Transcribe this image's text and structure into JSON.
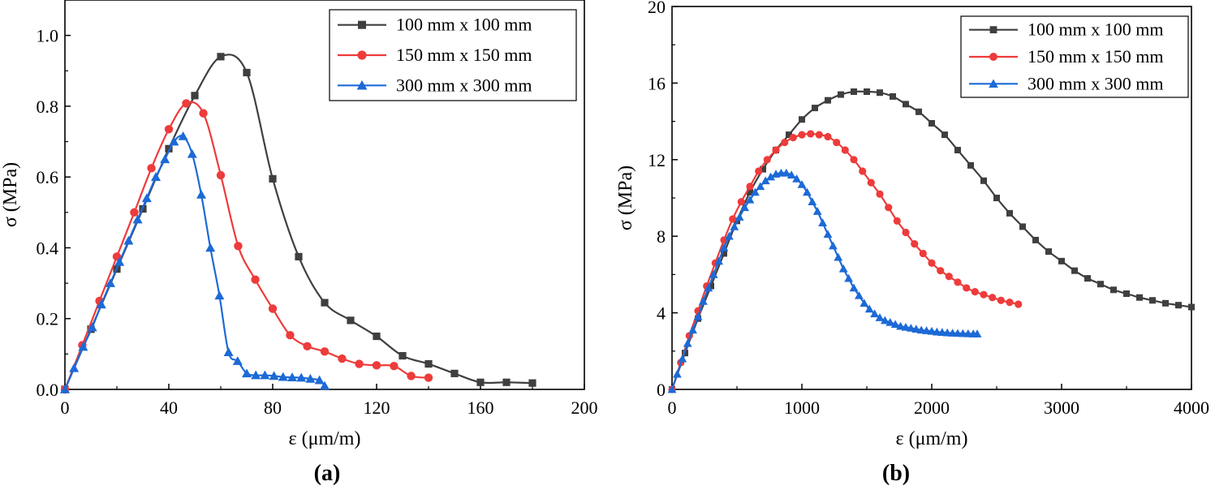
{
  "chart_data": [
    {
      "panel_label": "(a)",
      "type": "line",
      "xlabel": "ε (μm/m)",
      "ylabel": "σ (MPa)",
      "xlim": [
        0,
        200
      ],
      "ylim": [
        0,
        1.1
      ],
      "xticks": [
        0,
        40,
        80,
        120,
        160,
        200
      ],
      "xtick_labels": [
        "0",
        "40",
        "80",
        "120",
        "160",
        "200"
      ],
      "yticks": [
        0,
        0.2,
        0.4,
        0.6,
        0.8,
        1.0
      ],
      "ytick_labels": [
        "0.0",
        "0.2",
        "0.4",
        "0.6",
        "0.8",
        "1.0"
      ],
      "legend_position": "top-right",
      "series": [
        {
          "name": "100 mm x 100 mm",
          "color": "#3f3f3f",
          "marker": "square",
          "x": [
            0,
            10,
            20,
            30,
            40,
            50,
            60,
            70,
            80,
            90,
            100,
            110,
            120,
            130,
            140,
            150,
            160,
            170,
            180
          ],
          "y": [
            0.0,
            0.17,
            0.34,
            0.51,
            0.68,
            0.83,
            0.94,
            0.895,
            0.595,
            0.375,
            0.245,
            0.195,
            0.15,
            0.095,
            0.072,
            0.045,
            0.02,
            0.02,
            0.018
          ]
        },
        {
          "name": "150 mm x 150 mm",
          "color": "#ee3b3b",
          "marker": "circle",
          "x": [
            0,
            6.7,
            13.3,
            20,
            26.7,
            33.3,
            40,
            46.7,
            53.3,
            60,
            66.7,
            73.3,
            80,
            86.7,
            93.3,
            100,
            106.7,
            113.3,
            120,
            126.7,
            133.3,
            140
          ],
          "y": [
            0.0,
            0.125,
            0.25,
            0.375,
            0.5,
            0.625,
            0.735,
            0.808,
            0.78,
            0.605,
            0.405,
            0.31,
            0.228,
            0.153,
            0.122,
            0.107,
            0.087,
            0.072,
            0.068,
            0.066,
            0.038,
            0.033
          ]
        },
        {
          "name": "300 mm x 300 mm",
          "color": "#1c6ad6",
          "marker": "triangle",
          "x": [
            0,
            3.5,
            7,
            10.5,
            14,
            17.5,
            21,
            24.5,
            28,
            31.5,
            35,
            38.5,
            42,
            45.5,
            49,
            52.5,
            56,
            59.5,
            63,
            66.5,
            70,
            73.5,
            77,
            80.5,
            84,
            87.5,
            91,
            94.5,
            98,
            100
          ],
          "y": [
            0.0,
            0.06,
            0.12,
            0.175,
            0.24,
            0.3,
            0.36,
            0.42,
            0.48,
            0.54,
            0.6,
            0.65,
            0.7,
            0.715,
            0.665,
            0.55,
            0.4,
            0.265,
            0.105,
            0.08,
            0.045,
            0.04,
            0.04,
            0.038,
            0.035,
            0.034,
            0.033,
            0.03,
            0.026,
            0.01
          ]
        }
      ]
    },
    {
      "panel_label": "(b)",
      "type": "line",
      "xlabel": "ε (μm/m)",
      "ylabel": "σ (MPa)",
      "xlim": [
        0,
        4000
      ],
      "ylim": [
        0,
        20
      ],
      "xticks": [
        0,
        1000,
        2000,
        3000,
        4000
      ],
      "xtick_labels": [
        "0",
        "1000",
        "2000",
        "3000",
        "4000"
      ],
      "yticks": [
        0,
        4,
        8,
        12,
        16,
        20
      ],
      "ytick_labels": [
        "0",
        "4",
        "8",
        "12",
        "16",
        "20"
      ],
      "legend_position": "top-right",
      "series": [
        {
          "name": "100 mm x 100 mm",
          "color": "#3f3f3f",
          "marker": "square",
          "x": [
            0,
            100,
            200,
            300,
            400,
            500,
            600,
            700,
            800,
            900,
            1000,
            1100,
            1200,
            1300,
            1400,
            1500,
            1600,
            1700,
            1800,
            1900,
            2000,
            2100,
            2200,
            2300,
            2400,
            2500,
            2600,
            2700,
            2800,
            2900,
            3000,
            3100,
            3200,
            3300,
            3400,
            3500,
            3600,
            3700,
            3800,
            3900,
            4000
          ],
          "y": [
            0.0,
            1.9,
            3.7,
            5.4,
            7.1,
            8.8,
            10.3,
            11.5,
            12.5,
            13.3,
            14.1,
            14.7,
            15.1,
            15.4,
            15.55,
            15.55,
            15.5,
            15.3,
            14.9,
            14.5,
            13.9,
            13.3,
            12.5,
            11.7,
            10.9,
            10.0,
            9.2,
            8.5,
            7.8,
            7.2,
            6.7,
            6.2,
            5.8,
            5.5,
            5.2,
            5.0,
            4.8,
            4.65,
            4.5,
            4.4,
            4.3
          ]
        },
        {
          "name": "150 mm x 150 mm",
          "color": "#ee3b3b",
          "marker": "circle",
          "x": [
            0,
            67,
            133,
            200,
            267,
            333,
            400,
            467,
            533,
            600,
            667,
            733,
            800,
            867,
            933,
            1000,
            1067,
            1133,
            1200,
            1267,
            1333,
            1400,
            1467,
            1533,
            1600,
            1667,
            1733,
            1800,
            1867,
            1933,
            2000,
            2067,
            2133,
            2200,
            2267,
            2333,
            2400,
            2467,
            2533,
            2600,
            2667
          ],
          "y": [
            0.0,
            1.4,
            2.8,
            4.1,
            5.4,
            6.6,
            7.8,
            8.9,
            9.8,
            10.6,
            11.4,
            12.0,
            12.5,
            12.9,
            13.15,
            13.3,
            13.35,
            13.3,
            13.2,
            12.9,
            12.5,
            12.0,
            11.4,
            10.8,
            10.2,
            9.5,
            8.8,
            8.2,
            7.6,
            7.1,
            6.6,
            6.2,
            5.9,
            5.6,
            5.3,
            5.1,
            4.95,
            4.8,
            4.65,
            4.55,
            4.45
          ]
        },
        {
          "name": "300 mm x 300 mm",
          "color": "#1c6ad6",
          "marker": "triangle",
          "x": [
            0,
            40,
            80,
            120,
            160,
            200,
            240,
            280,
            320,
            360,
            400,
            440,
            480,
            520,
            560,
            600,
            640,
            680,
            720,
            760,
            800,
            840,
            880,
            920,
            960,
            1000,
            1040,
            1080,
            1120,
            1160,
            1200,
            1240,
            1280,
            1320,
            1360,
            1400,
            1440,
            1480,
            1520,
            1560,
            1600,
            1640,
            1680,
            1720,
            1760,
            1800,
            1840,
            1880,
            1920,
            1960,
            2000,
            2040,
            2080,
            2120,
            2160,
            2200,
            2240,
            2280,
            2320,
            2350
          ],
          "y": [
            0.0,
            0.8,
            1.6,
            2.4,
            3.1,
            3.8,
            4.6,
            5.3,
            6.0,
            6.7,
            7.4,
            8.0,
            8.5,
            9.0,
            9.5,
            9.9,
            10.3,
            10.6,
            10.9,
            11.1,
            11.25,
            11.3,
            11.3,
            11.2,
            11.0,
            10.7,
            10.3,
            9.8,
            9.3,
            8.7,
            8.1,
            7.5,
            6.9,
            6.3,
            5.8,
            5.3,
            4.9,
            4.5,
            4.2,
            3.95,
            3.75,
            3.6,
            3.5,
            3.4,
            3.3,
            3.25,
            3.2,
            3.15,
            3.1,
            3.07,
            3.04,
            3.0,
            2.98,
            2.96,
            2.94,
            2.93,
            2.92,
            2.91,
            2.9,
            2.9
          ]
        }
      ]
    }
  ]
}
